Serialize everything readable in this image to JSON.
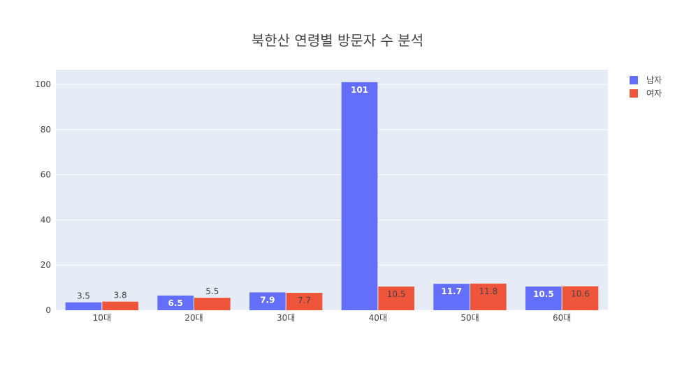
{
  "chart_data": {
    "type": "bar",
    "title": "북한산 연령별 방문자 수 분석",
    "categories": [
      "10대",
      "20대",
      "30대",
      "40대",
      "50대",
      "60대"
    ],
    "series": [
      {
        "name": "남자",
        "color": "#636efa",
        "values": [
          3.5,
          6.5,
          7.9,
          101,
          11.7,
          10.5
        ],
        "labels": [
          "3.5",
          "6.5",
          "7.9",
          "101",
          "11.7",
          "10.5"
        ]
      },
      {
        "name": "여자",
        "color": "#ef553b",
        "values": [
          3.8,
          5.5,
          7.7,
          10.5,
          11.8,
          10.6
        ],
        "labels": [
          "3.8",
          "5.5",
          "7.7",
          "10.5",
          "11.8",
          "10.6"
        ]
      }
    ],
    "yticks": [
      0,
      20,
      40,
      60,
      80,
      100
    ],
    "ylim": [
      0,
      106.5
    ],
    "grid": true,
    "legend": "top-right",
    "plot_bg": "#e5ecf6"
  }
}
